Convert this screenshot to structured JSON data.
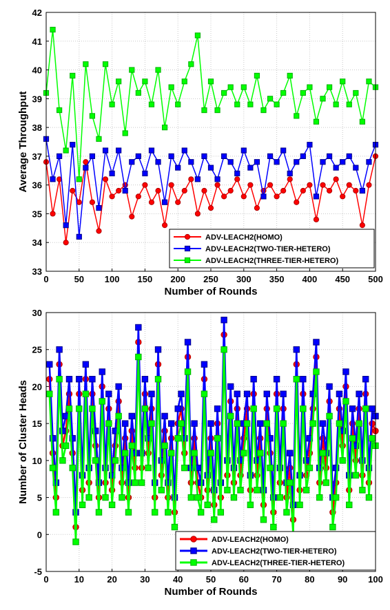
{
  "chart_data": [
    {
      "type": "line",
      "xlabel": "Number of Rounds",
      "ylabel": "Average Throughput",
      "xlim": [
        0,
        500
      ],
      "ylim": [
        33,
        42
      ],
      "xticks": [
        0,
        50,
        100,
        150,
        200,
        250,
        300,
        350,
        400,
        450,
        500
      ],
      "yticks": [
        33,
        34,
        35,
        36,
        37,
        38,
        39,
        40,
        41,
        42
      ],
      "grid": true,
      "legend_position": "bottom-right",
      "series": [
        {
          "name": "ADV-LEACH2(HOMO)",
          "color": "#ff0000",
          "marker": "circle",
          "x": [
            0,
            10,
            20,
            30,
            40,
            50,
            60,
            70,
            80,
            90,
            100,
            110,
            120,
            130,
            140,
            150,
            160,
            170,
            180,
            190,
            200,
            210,
            220,
            230,
            240,
            250,
            260,
            270,
            280,
            290,
            300,
            310,
            320,
            330,
            340,
            350,
            360,
            370,
            380,
            390,
            400,
            410,
            420,
            430,
            440,
            450,
            460,
            470,
            480,
            490,
            500
          ],
          "values": [
            36.8,
            35.0,
            36.2,
            34.0,
            35.8,
            35.4,
            36.8,
            35.4,
            34.4,
            36.2,
            35.6,
            35.8,
            36.0,
            34.9,
            35.6,
            36.0,
            35.4,
            35.8,
            34.6,
            36.0,
            35.4,
            35.8,
            36.2,
            35.0,
            35.8,
            35.2,
            36.0,
            35.6,
            35.8,
            36.2,
            35.6,
            36.0,
            35.2,
            35.8,
            36.0,
            35.6,
            35.8,
            36.2,
            35.4,
            35.8,
            36.0,
            34.8,
            36.0,
            35.8,
            36.2,
            35.6,
            36.0,
            35.8,
            34.6,
            36.0,
            37.0
          ]
        },
        {
          "name": "ADV-LEACH2(TWO-TIER-HETERO)",
          "color": "#0000ff",
          "marker": "square",
          "x": [
            0,
            10,
            20,
            30,
            40,
            50,
            60,
            70,
            80,
            90,
            100,
            110,
            120,
            130,
            140,
            150,
            160,
            170,
            180,
            190,
            200,
            210,
            220,
            230,
            240,
            250,
            260,
            270,
            280,
            290,
            300,
            310,
            320,
            330,
            340,
            350,
            360,
            370,
            380,
            390,
            400,
            410,
            420,
            430,
            440,
            450,
            460,
            470,
            480,
            490,
            500
          ],
          "values": [
            37.6,
            36.2,
            37.0,
            34.6,
            37.4,
            34.2,
            36.6,
            37.0,
            35.2,
            37.2,
            36.4,
            37.2,
            35.8,
            36.8,
            37.0,
            36.4,
            37.2,
            36.8,
            35.4,
            37.0,
            36.6,
            37.2,
            36.8,
            36.2,
            37.0,
            36.6,
            36.2,
            37.0,
            36.8,
            36.4,
            37.2,
            36.6,
            36.8,
            35.6,
            37.0,
            36.8,
            37.2,
            36.4,
            36.8,
            37.0,
            37.4,
            35.6,
            36.8,
            37.0,
            36.6,
            36.8,
            37.0,
            36.6,
            35.8,
            36.8,
            37.4
          ]
        },
        {
          "name": "ADV-LEACH2(THREE-TIER-HETERO)",
          "color": "#00ff00",
          "marker": "square",
          "x": [
            0,
            10,
            20,
            30,
            40,
            50,
            60,
            70,
            80,
            90,
            100,
            110,
            120,
            130,
            140,
            150,
            160,
            170,
            180,
            190,
            200,
            210,
            220,
            230,
            240,
            250,
            260,
            270,
            280,
            290,
            300,
            310,
            320,
            330,
            340,
            350,
            360,
            370,
            380,
            390,
            400,
            410,
            420,
            430,
            440,
            450,
            460,
            470,
            480,
            490,
            500
          ],
          "values": [
            39.2,
            41.4,
            38.6,
            37.2,
            39.8,
            36.2,
            40.2,
            38.4,
            37.6,
            40.2,
            38.8,
            39.6,
            37.8,
            40.0,
            39.2,
            39.6,
            38.8,
            40.0,
            38.0,
            39.4,
            38.8,
            39.6,
            40.2,
            41.2,
            38.6,
            39.6,
            38.6,
            39.2,
            39.4,
            38.8,
            39.4,
            38.8,
            39.8,
            38.6,
            39.0,
            38.8,
            39.2,
            39.8,
            38.4,
            39.2,
            39.4,
            38.2,
            39.0,
            39.4,
            38.8,
            39.6,
            38.8,
            39.2,
            38.2,
            39.6,
            39.4
          ]
        }
      ]
    },
    {
      "type": "line",
      "xlabel": "Number of Rounds",
      "ylabel": "Number of Cluster Heads",
      "xlim": [
        0,
        100
      ],
      "ylim": [
        -5,
        30
      ],
      "xticks": [
        0,
        10,
        20,
        30,
        40,
        50,
        60,
        70,
        80,
        90,
        100
      ],
      "yticks": [
        -5,
        0,
        5,
        10,
        15,
        20,
        25,
        30
      ],
      "grid": true,
      "legend_position": "bottom-right",
      "series": [
        {
          "name": "ADV-LEACH2(HOMO)",
          "color": "#ff0000",
          "marker": "circle",
          "x": [
            1,
            2,
            3,
            4,
            5,
            6,
            7,
            8,
            9,
            10,
            11,
            12,
            13,
            14,
            15,
            16,
            17,
            18,
            19,
            20,
            21,
            22,
            23,
            24,
            25,
            26,
            27,
            28,
            29,
            30,
            31,
            32,
            33,
            34,
            35,
            36,
            37,
            38,
            39,
            40,
            41,
            42,
            43,
            44,
            45,
            46,
            47,
            48,
            49,
            50,
            51,
            52,
            53,
            54,
            55,
            56,
            57,
            58,
            59,
            60,
            61,
            62,
            63,
            64,
            65,
            66,
            67,
            68,
            69,
            70,
            71,
            72,
            73,
            74,
            75,
            76,
            77,
            78,
            79,
            80,
            81,
            82,
            83,
            84,
            85,
            86,
            87,
            88,
            89,
            90,
            91,
            92,
            93,
            94,
            95,
            96,
            97,
            98,
            99,
            100
          ],
          "values": [
            21,
            11,
            5,
            23,
            12,
            14,
            19,
            11,
            1,
            19,
            6,
            21,
            7,
            19,
            12,
            5,
            20,
            7,
            17,
            6,
            12,
            18,
            7,
            13,
            5,
            14,
            9,
            26,
            9,
            19,
            11,
            17,
            5,
            23,
            8,
            14,
            5,
            13,
            3,
            15,
            17,
            11,
            24,
            7,
            13,
            7,
            5,
            21,
            6,
            13,
            4,
            15,
            5,
            27,
            8,
            18,
            7,
            17,
            8,
            13,
            17,
            6,
            19,
            8,
            13,
            4,
            17,
            11,
            3,
            19,
            7,
            17,
            5,
            9,
            2,
            23,
            6,
            19,
            8,
            11,
            17,
            24,
            7,
            13,
            9,
            18,
            3,
            7,
            17,
            12,
            20,
            6,
            15,
            10,
            17,
            8,
            19,
            7,
            15,
            14
          ]
        },
        {
          "name": "ADV-LEACH2(TWO-TIER-HETERO)",
          "color": "#0000ff",
          "marker": "square",
          "x": [
            1,
            2,
            3,
            4,
            5,
            6,
            7,
            8,
            9,
            10,
            11,
            12,
            13,
            14,
            15,
            16,
            17,
            18,
            19,
            20,
            21,
            22,
            23,
            24,
            25,
            26,
            27,
            28,
            29,
            30,
            31,
            32,
            33,
            34,
            35,
            36,
            37,
            38,
            39,
            40,
            41,
            42,
            43,
            44,
            45,
            46,
            47,
            48,
            49,
            50,
            51,
            52,
            53,
            54,
            55,
            56,
            57,
            58,
            59,
            60,
            61,
            62,
            63,
            64,
            65,
            66,
            67,
            68,
            69,
            70,
            71,
            72,
            73,
            74,
            75,
            76,
            77,
            78,
            79,
            80,
            81,
            82,
            83,
            84,
            85,
            86,
            87,
            88,
            89,
            90,
            91,
            92,
            93,
            94,
            95,
            96,
            97,
            98,
            99,
            100
          ],
          "values": [
            23,
            13,
            7,
            25,
            14,
            16,
            21,
            13,
            3,
            21,
            8,
            23,
            9,
            21,
            14,
            7,
            22,
            9,
            19,
            8,
            14,
            20,
            9,
            15,
            7,
            16,
            11,
            28,
            11,
            21,
            13,
            19,
            7,
            25,
            10,
            16,
            7,
            15,
            5,
            17,
            19,
            13,
            26,
            9,
            15,
            9,
            7,
            23,
            8,
            15,
            6,
            17,
            7,
            29,
            10,
            20,
            9,
            19,
            10,
            15,
            19,
            8,
            21,
            10,
            15,
            6,
            19,
            13,
            5,
            21,
            9,
            19,
            7,
            11,
            4,
            25,
            8,
            21,
            10,
            13,
            19,
            26,
            9,
            15,
            11,
            20,
            5,
            9,
            19,
            14,
            22,
            8,
            17,
            12,
            19,
            10,
            21,
            9,
            17,
            16
          ]
        },
        {
          "name": "ADV-LEACH2(THREE-TIER-HETERO)",
          "color": "#00ff00",
          "marker": "square",
          "x": [
            1,
            2,
            3,
            4,
            5,
            6,
            7,
            8,
            9,
            10,
            11,
            12,
            13,
            14,
            15,
            16,
            17,
            18,
            19,
            20,
            21,
            22,
            23,
            24,
            25,
            26,
            27,
            28,
            29,
            30,
            31,
            32,
            33,
            34,
            35,
            36,
            37,
            38,
            39,
            40,
            41,
            42,
            43,
            44,
            45,
            46,
            47,
            48,
            49,
            50,
            51,
            52,
            53,
            54,
            55,
            56,
            57,
            58,
            59,
            60,
            61,
            62,
            63,
            64,
            65,
            66,
            67,
            68,
            69,
            70,
            71,
            72,
            73,
            74,
            75,
            76,
            77,
            78,
            79,
            80,
            81,
            82,
            83,
            84,
            85,
            86,
            87,
            88,
            89,
            90,
            91,
            92,
            93,
            94,
            95,
            96,
            97,
            98,
            99,
            100
          ],
          "values": [
            19,
            9,
            3,
            21,
            10,
            12,
            17,
            9,
            -1,
            17,
            4,
            19,
            5,
            17,
            10,
            3,
            18,
            5,
            15,
            4,
            10,
            16,
            5,
            11,
            3,
            12,
            7,
            24,
            7,
            17,
            9,
            15,
            3,
            21,
            6,
            12,
            3,
            11,
            1,
            13,
            15,
            9,
            22,
            5,
            11,
            5,
            3,
            19,
            4,
            11,
            2,
            13,
            3,
            25,
            6,
            16,
            5,
            15,
            6,
            11,
            15,
            4,
            17,
            6,
            11,
            2,
            15,
            9,
            1,
            17,
            5,
            15,
            3,
            7,
            0,
            21,
            4,
            17,
            6,
            9,
            15,
            22,
            5,
            11,
            7,
            16,
            1,
            5,
            15,
            10,
            18,
            4,
            13,
            8,
            15,
            6,
            17,
            5,
            13,
            12
          ]
        }
      ]
    }
  ]
}
